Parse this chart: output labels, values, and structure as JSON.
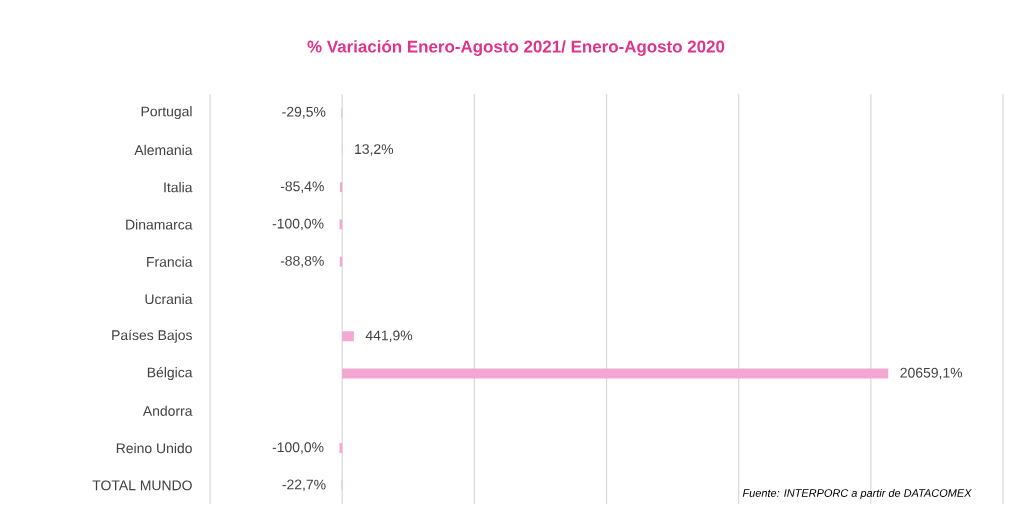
{
  "chart_data": {
    "type": "bar",
    "orientation": "horizontal",
    "title": "% Variación Enero-Agosto 2021/ Enero-Agosto 2020",
    "categories": [
      "Portugal",
      "Alemania",
      "Italia",
      "Dinamarca",
      "Francia",
      "Ucrania",
      "Países Bajos",
      "Bélgica",
      "Andorra",
      "Reino Unido",
      "TOTAL MUNDO"
    ],
    "values": [
      -29.5,
      13.2,
      -85.4,
      -100.0,
      -88.8,
      null,
      441.9,
      20659.1,
      null,
      -100.0,
      -22.7
    ],
    "value_labels": [
      "-29,5%",
      "13,2%",
      "-85,4%",
      "-100,0%",
      "-88,8%",
      null,
      "441,9%",
      "20659,1%",
      null,
      "-100,0%",
      "-22,7%"
    ],
    "color": "#f4a7d3",
    "xlim": [
      -5000,
      25000
    ],
    "xticks": [
      {
        "value": -5000,
        "label": null
      },
      {
        "value": 0,
        "label": null
      },
      {
        "value": 5000,
        "label": null
      },
      {
        "value": 10000,
        "label": null
      },
      {
        "value": 15000,
        "label": null
      },
      {
        "value": 20000,
        "label": null
      },
      {
        "value": 25000,
        "label": null
      }
    ],
    "grid": "x",
    "tick_labels": "y",
    "annotations": [
      "Fuente: INTERPORC  a partir de DATACOMEX"
    ]
  }
}
